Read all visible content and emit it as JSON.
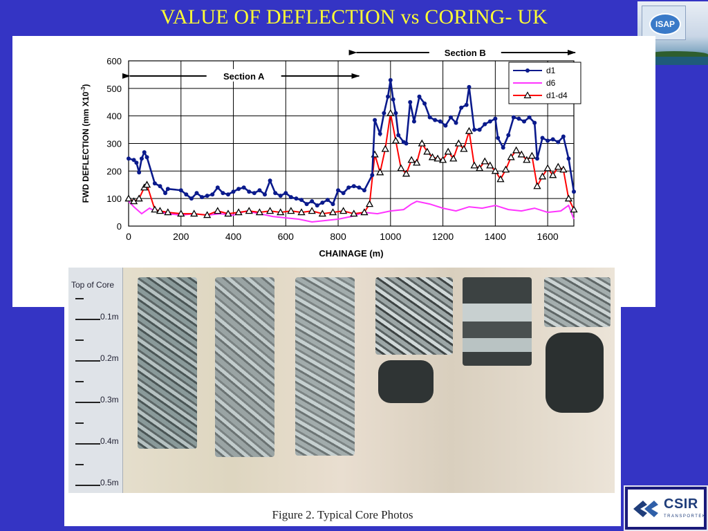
{
  "slide": {
    "title": "VALUE OF DEFLECTION vs CORING- UK",
    "figure_caption": "Figure 2.  Typical Core Photos"
  },
  "logos": {
    "isap_text": "ISAP",
    "csir_name": "CSIR",
    "csir_sub": "TRANSPORTEK"
  },
  "ruler": {
    "top_label": "Top of Core",
    "marks": [
      "0.1m",
      "0.2m",
      "0.3m",
      "0.4m",
      "0.5m"
    ]
  },
  "colors": {
    "background": "#3434c4",
    "title": "#ffff33",
    "d1": "#0a1a8c",
    "d6": "#ff33ff",
    "d1_d4": "#ff0000"
  },
  "chart_data": {
    "type": "line",
    "xlabel": "CHAINAGE (m)",
    "ylabel": "FWD DEFLECTION (mm X10",
    "ylabel_sup": "-3",
    "ylabel_tail": ")",
    "xlim": [
      0,
      1700
    ],
    "ylim": [
      0,
      600
    ],
    "xticks": [
      0,
      200,
      400,
      600,
      800,
      1000,
      1200,
      1400,
      1600
    ],
    "yticks": [
      0,
      100,
      200,
      300,
      400,
      500,
      600
    ],
    "grid": true,
    "legend_position": "top-right",
    "annotations": [
      {
        "text": "Section A",
        "from": 0,
        "to": 880
      },
      {
        "text": "Section B",
        "from": 870,
        "to": 1700
      }
    ],
    "series": [
      {
        "name": "d1",
        "marker": "circle",
        "points": [
          [
            0,
            245
          ],
          [
            20,
            240
          ],
          [
            30,
            230
          ],
          [
            40,
            195
          ],
          [
            50,
            245
          ],
          [
            60,
            268
          ],
          [
            70,
            250
          ],
          [
            100,
            155
          ],
          [
            120,
            145
          ],
          [
            140,
            120
          ],
          [
            150,
            135
          ],
          [
            200,
            130
          ],
          [
            220,
            115
          ],
          [
            240,
            100
          ],
          [
            260,
            120
          ],
          [
            280,
            105
          ],
          [
            300,
            110
          ],
          [
            320,
            115
          ],
          [
            340,
            140
          ],
          [
            360,
            120
          ],
          [
            380,
            115
          ],
          [
            400,
            125
          ],
          [
            420,
            135
          ],
          [
            440,
            140
          ],
          [
            460,
            125
          ],
          [
            480,
            120
          ],
          [
            500,
            130
          ],
          [
            520,
            115
          ],
          [
            540,
            165
          ],
          [
            560,
            120
          ],
          [
            580,
            110
          ],
          [
            600,
            120
          ],
          [
            620,
            105
          ],
          [
            640,
            100
          ],
          [
            660,
            95
          ],
          [
            680,
            80
          ],
          [
            700,
            90
          ],
          [
            720,
            75
          ],
          [
            740,
            85
          ],
          [
            760,
            95
          ],
          [
            780,
            80
          ],
          [
            800,
            130
          ],
          [
            820,
            120
          ],
          [
            840,
            140
          ],
          [
            860,
            145
          ],
          [
            880,
            140
          ],
          [
            900,
            130
          ],
          [
            930,
            185
          ],
          [
            940,
            385
          ],
          [
            960,
            335
          ],
          [
            975,
            410
          ],
          [
            990,
            470
          ],
          [
            1000,
            530
          ],
          [
            1010,
            460
          ],
          [
            1020,
            410
          ],
          [
            1030,
            330
          ],
          [
            1050,
            305
          ],
          [
            1060,
            300
          ],
          [
            1075,
            450
          ],
          [
            1090,
            380
          ],
          [
            1110,
            470
          ],
          [
            1130,
            445
          ],
          [
            1150,
            395
          ],
          [
            1170,
            385
          ],
          [
            1190,
            380
          ],
          [
            1210,
            365
          ],
          [
            1230,
            395
          ],
          [
            1250,
            375
          ],
          [
            1270,
            430
          ],
          [
            1290,
            440
          ],
          [
            1300,
            505
          ],
          [
            1320,
            350
          ],
          [
            1340,
            350
          ],
          [
            1360,
            370
          ],
          [
            1380,
            380
          ],
          [
            1400,
            390
          ],
          [
            1410,
            320
          ],
          [
            1430,
            285
          ],
          [
            1450,
            330
          ],
          [
            1470,
            395
          ],
          [
            1490,
            390
          ],
          [
            1510,
            380
          ],
          [
            1530,
            395
          ],
          [
            1550,
            375
          ],
          [
            1560,
            245
          ],
          [
            1580,
            320
          ],
          [
            1600,
            310
          ],
          [
            1620,
            315
          ],
          [
            1640,
            305
          ],
          [
            1660,
            325
          ],
          [
            1680,
            245
          ],
          [
            1700,
            125
          ]
        ]
      },
      {
        "name": "d6",
        "marker": "none",
        "points": [
          [
            0,
            90
          ],
          [
            20,
            70
          ],
          [
            50,
            45
          ],
          [
            80,
            65
          ],
          [
            100,
            55
          ],
          [
            150,
            45
          ],
          [
            200,
            40
          ],
          [
            250,
            45
          ],
          [
            300,
            40
          ],
          [
            350,
            45
          ],
          [
            400,
            40
          ],
          [
            450,
            55
          ],
          [
            500,
            45
          ],
          [
            550,
            35
          ],
          [
            600,
            30
          ],
          [
            650,
            25
          ],
          [
            700,
            15
          ],
          [
            750,
            20
          ],
          [
            800,
            25
          ],
          [
            850,
            35
          ],
          [
            900,
            50
          ],
          [
            950,
            45
          ],
          [
            1000,
            55
          ],
          [
            1050,
            60
          ],
          [
            1080,
            80
          ],
          [
            1100,
            90
          ],
          [
            1150,
            80
          ],
          [
            1200,
            65
          ],
          [
            1250,
            55
          ],
          [
            1300,
            70
          ],
          [
            1350,
            65
          ],
          [
            1400,
            75
          ],
          [
            1450,
            60
          ],
          [
            1500,
            55
          ],
          [
            1550,
            65
          ],
          [
            1600,
            50
          ],
          [
            1650,
            55
          ],
          [
            1680,
            75
          ],
          [
            1700,
            25
          ]
        ]
      },
      {
        "name": "d1-d4",
        "marker": "triangle",
        "points": [
          [
            0,
            100
          ],
          [
            20,
            90
          ],
          [
            40,
            100
          ],
          [
            60,
            140
          ],
          [
            70,
            150
          ],
          [
            100,
            60
          ],
          [
            120,
            55
          ],
          [
            150,
            50
          ],
          [
            200,
            45
          ],
          [
            250,
            45
          ],
          [
            300,
            40
          ],
          [
            340,
            55
          ],
          [
            380,
            45
          ],
          [
            420,
            50
          ],
          [
            460,
            55
          ],
          [
            500,
            50
          ],
          [
            540,
            55
          ],
          [
            580,
            50
          ],
          [
            620,
            55
          ],
          [
            660,
            50
          ],
          [
            700,
            55
          ],
          [
            740,
            45
          ],
          [
            780,
            50
          ],
          [
            820,
            55
          ],
          [
            860,
            45
          ],
          [
            900,
            50
          ],
          [
            920,
            80
          ],
          [
            940,
            260
          ],
          [
            960,
            195
          ],
          [
            980,
            280
          ],
          [
            1000,
            410
          ],
          [
            1020,
            310
          ],
          [
            1040,
            210
          ],
          [
            1060,
            190
          ],
          [
            1080,
            240
          ],
          [
            1100,
            230
          ],
          [
            1120,
            300
          ],
          [
            1140,
            270
          ],
          [
            1160,
            250
          ],
          [
            1180,
            245
          ],
          [
            1200,
            240
          ],
          [
            1220,
            270
          ],
          [
            1240,
            245
          ],
          [
            1260,
            300
          ],
          [
            1280,
            280
          ],
          [
            1300,
            345
          ],
          [
            1320,
            220
          ],
          [
            1340,
            210
          ],
          [
            1360,
            235
          ],
          [
            1380,
            220
          ],
          [
            1400,
            200
          ],
          [
            1420,
            170
          ],
          [
            1440,
            205
          ],
          [
            1460,
            250
          ],
          [
            1480,
            275
          ],
          [
            1500,
            260
          ],
          [
            1520,
            240
          ],
          [
            1540,
            255
          ],
          [
            1560,
            145
          ],
          [
            1580,
            180
          ],
          [
            1600,
            210
          ],
          [
            1620,
            185
          ],
          [
            1640,
            215
          ],
          [
            1660,
            205
          ],
          [
            1680,
            100
          ],
          [
            1700,
            60
          ]
        ]
      }
    ]
  }
}
